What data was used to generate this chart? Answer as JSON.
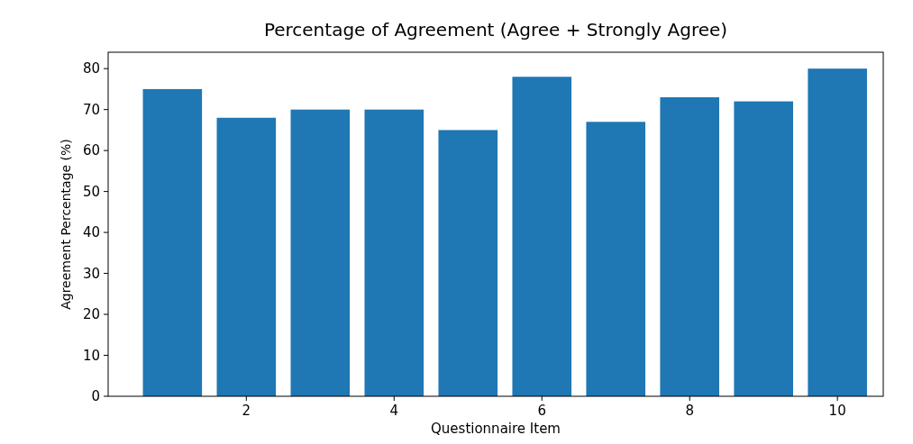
{
  "chart_data": {
    "type": "bar",
    "title": "Percentage of Agreement (Agree + Strongly Agree)",
    "xlabel": "Questionnaire Item",
    "ylabel": "Agreement Percentage (%)",
    "x": [
      1,
      2,
      3,
      4,
      5,
      6,
      7,
      8,
      9,
      10
    ],
    "values": [
      75,
      68,
      70,
      70,
      65,
      78,
      67,
      73,
      72,
      80
    ],
    "color": "#1f77b4",
    "xlim": [
      0.13,
      10.62
    ],
    "xticks": [
      2,
      4,
      6,
      8,
      10
    ],
    "ylim": [
      0,
      84
    ],
    "yticks": [
      0,
      10,
      20,
      30,
      40,
      50,
      60,
      70,
      80
    ]
  }
}
